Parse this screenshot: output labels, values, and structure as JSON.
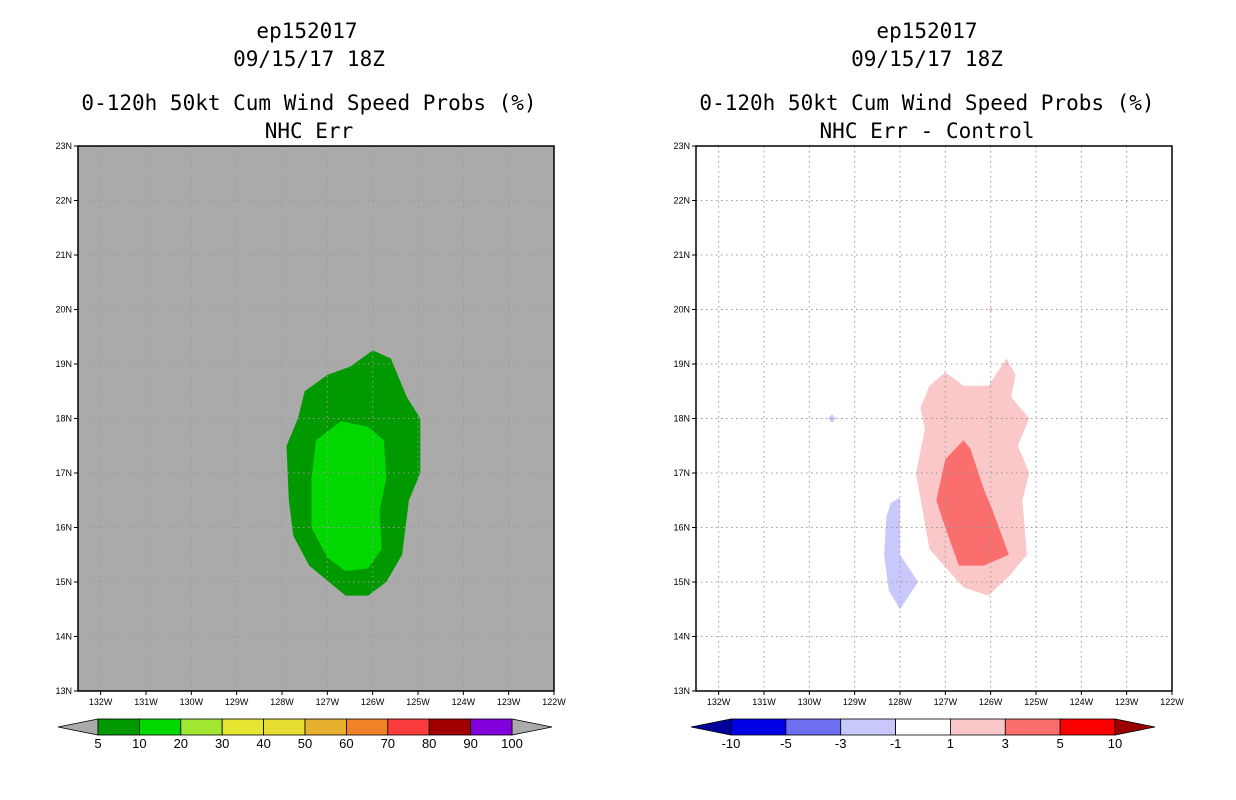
{
  "chart_data": [
    {
      "type": "heatmap",
      "storm_id": "ep152017",
      "datetime": "09/15/17 18Z",
      "title": "0-120h 50kt Cum Wind Speed Probs (%)",
      "subtitle": "NHC Err",
      "xlim": [
        -132.5,
        -122
      ],
      "ylim": [
        13,
        23
      ],
      "x_ticks": [
        {
          "value": -132,
          "label": "132W"
        },
        {
          "value": -131,
          "label": "131W"
        },
        {
          "value": -130,
          "label": "130W"
        },
        {
          "value": -129,
          "label": "129W"
        },
        {
          "value": -128,
          "label": "128W"
        },
        {
          "value": -127,
          "label": "127W"
        },
        {
          "value": -126,
          "label": "126W"
        },
        {
          "value": -125,
          "label": "125W"
        },
        {
          "value": -124,
          "label": "124W"
        },
        {
          "value": -123,
          "label": "123W"
        },
        {
          "value": -122,
          "label": "122W"
        }
      ],
      "y_ticks": [
        {
          "value": 13,
          "label": "13N"
        },
        {
          "value": 14,
          "label": "14N"
        },
        {
          "value": 15,
          "label": "15N"
        },
        {
          "value": 16,
          "label": "16N"
        },
        {
          "value": 17,
          "label": "17N"
        },
        {
          "value": 18,
          "label": "18N"
        },
        {
          "value": 19,
          "label": "19N"
        },
        {
          "value": 20,
          "label": "20N"
        },
        {
          "value": 21,
          "label": "21N"
        },
        {
          "value": 22,
          "label": "22N"
        },
        {
          "value": 23,
          "label": "23N"
        }
      ],
      "background_color": "#aaaaaa",
      "grid": true,
      "contours": [
        {
          "name": "prob-5-10",
          "color": "#009a00",
          "points": [
            [
              -127.5,
              18.5
            ],
            [
              -127.0,
              18.8
            ],
            [
              -126.5,
              18.95
            ],
            [
              -126.0,
              19.25
            ],
            [
              -125.6,
              19.1
            ],
            [
              -125.45,
              18.8
            ],
            [
              -125.25,
              18.4
            ],
            [
              -124.95,
              18.0
            ],
            [
              -124.95,
              17.0
            ],
            [
              -125.2,
              16.5
            ],
            [
              -125.35,
              15.5
            ],
            [
              -125.7,
              15.0
            ],
            [
              -126.1,
              14.75
            ],
            [
              -126.6,
              14.75
            ],
            [
              -127.4,
              15.3
            ],
            [
              -127.75,
              15.85
            ],
            [
              -127.85,
              16.5
            ],
            [
              -127.9,
              17.5
            ],
            [
              -127.65,
              18.0
            ]
          ]
        },
        {
          "name": "prob-10-20",
          "color": "#00d800",
          "points": [
            [
              -127.25,
              17.6
            ],
            [
              -126.7,
              17.95
            ],
            [
              -126.1,
              17.85
            ],
            [
              -125.75,
              17.6
            ],
            [
              -125.7,
              16.9
            ],
            [
              -125.85,
              16.3
            ],
            [
              -125.8,
              15.6
            ],
            [
              -126.1,
              15.25
            ],
            [
              -126.6,
              15.2
            ],
            [
              -127.0,
              15.45
            ],
            [
              -127.35,
              16.0
            ],
            [
              -127.35,
              16.9
            ]
          ]
        }
      ],
      "colorbar": {
        "labels": [
          "5",
          "10",
          "20",
          "30",
          "40",
          "50",
          "60",
          "70",
          "80",
          "90",
          "100"
        ],
        "colors": [
          "#009a00",
          "#00d800",
          "#a0e632",
          "#e6e632",
          "#e6dc32",
          "#e6af2d",
          "#f08228",
          "#fa3c3c",
          "#a00000",
          "#8200dc"
        ],
        "end_low_color": "#aaaaaa",
        "end_high_color": "#aaaaaa"
      }
    },
    {
      "type": "heatmap",
      "storm_id": "ep152017",
      "datetime": "09/15/17 18Z",
      "title": "0-120h 50kt Cum Wind Speed Probs (%)",
      "subtitle": "NHC Err - Control",
      "xlim": [
        -132.5,
        -122
      ],
      "ylim": [
        13,
        23
      ],
      "x_ticks": [
        {
          "value": -132,
          "label": "132W"
        },
        {
          "value": -131,
          "label": "131W"
        },
        {
          "value": -130,
          "label": "130W"
        },
        {
          "value": -129,
          "label": "129W"
        },
        {
          "value": -128,
          "label": "128W"
        },
        {
          "value": -127,
          "label": "127W"
        },
        {
          "value": -126,
          "label": "126W"
        },
        {
          "value": -125,
          "label": "125W"
        },
        {
          "value": -124,
          "label": "124W"
        },
        {
          "value": -123,
          "label": "123W"
        },
        {
          "value": -122,
          "label": "122W"
        }
      ],
      "y_ticks": [
        {
          "value": 13,
          "label": "13N"
        },
        {
          "value": 14,
          "label": "14N"
        },
        {
          "value": 15,
          "label": "15N"
        },
        {
          "value": 16,
          "label": "16N"
        },
        {
          "value": 17,
          "label": "17N"
        },
        {
          "value": 18,
          "label": "18N"
        },
        {
          "value": 19,
          "label": "19N"
        },
        {
          "value": 20,
          "label": "20N"
        },
        {
          "value": 21,
          "label": "21N"
        },
        {
          "value": 22,
          "label": "22N"
        },
        {
          "value": 23,
          "label": "23N"
        }
      ],
      "background_color": "#ffffff",
      "grid": true,
      "contours": [
        {
          "name": "diff-plus-1-3",
          "color": "#fac8c8",
          "points": [
            [
              -127.35,
              18.6
            ],
            [
              -127.0,
              18.85
            ],
            [
              -126.6,
              18.6
            ],
            [
              -126.05,
              18.6
            ],
            [
              -125.65,
              19.1
            ],
            [
              -125.45,
              18.8
            ],
            [
              -125.55,
              18.4
            ],
            [
              -125.15,
              18.0
            ],
            [
              -125.4,
              17.5
            ],
            [
              -125.15,
              17.0
            ],
            [
              -125.3,
              16.5
            ],
            [
              -125.2,
              15.5
            ],
            [
              -125.6,
              15.1
            ],
            [
              -126.05,
              14.75
            ],
            [
              -126.6,
              14.9
            ],
            [
              -127.35,
              15.6
            ],
            [
              -127.5,
              16.3
            ],
            [
              -127.65,
              17.0
            ],
            [
              -127.45,
              17.8
            ],
            [
              -127.55,
              18.2
            ]
          ]
        },
        {
          "name": "diff-plus-3-5",
          "color": "#fa6e6e",
          "points": [
            [
              -127.0,
              17.25
            ],
            [
              -126.6,
              17.6
            ],
            [
              -126.45,
              17.45
            ],
            [
              -126.15,
              16.7
            ],
            [
              -125.95,
              16.3
            ],
            [
              -125.6,
              15.5
            ],
            [
              -126.15,
              15.3
            ],
            [
              -126.7,
              15.3
            ],
            [
              -127.0,
              16.0
            ],
            [
              -127.2,
              16.5
            ]
          ]
        },
        {
          "name": "diff-minus-3-1",
          "color": "#c8c8fa",
          "points": [
            [
              -128.2,
              16.45
            ],
            [
              -128.0,
              16.55
            ],
            [
              -128.0,
              15.5
            ],
            [
              -127.6,
              15.0
            ],
            [
              -128.0,
              14.5
            ],
            [
              -128.25,
              14.85
            ],
            [
              -128.35,
              15.5
            ],
            [
              -128.3,
              16.2
            ]
          ]
        },
        {
          "name": "diff-minus-3-1-speck",
          "color": "#c8c8fa",
          "points": [
            [
              -129.5,
              18.08
            ],
            [
              -129.42,
              18.0
            ],
            [
              -129.5,
              17.92
            ],
            [
              -129.58,
              18.0
            ]
          ]
        },
        {
          "name": "diff-plus-1-3-speck",
          "color": "#fac8c8",
          "points": [
            [
              -126.0,
              20.05
            ],
            [
              -125.96,
              20.0
            ],
            [
              -126.0,
              19.95
            ],
            [
              -126.04,
              20.0
            ]
          ]
        }
      ],
      "colorbar": {
        "labels": [
          "-10",
          "-5",
          "-3",
          "-1",
          "1",
          "3",
          "5",
          "10"
        ],
        "colors": [
          "#0000e6",
          "#6e6ef0",
          "#c8c8fa",
          "#ffffff",
          "#fac8c8",
          "#fa6e6e",
          "#fa0000"
        ],
        "end_low_color": "#00009a",
        "end_high_color": "#9a0000"
      }
    }
  ]
}
